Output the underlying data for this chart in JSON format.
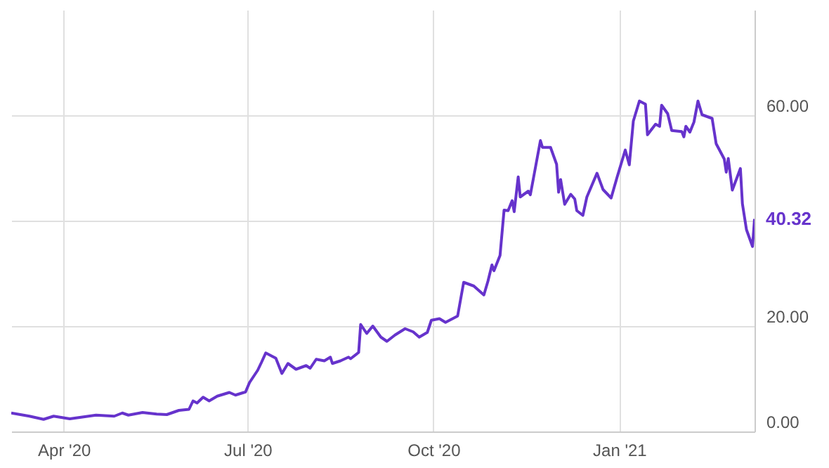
{
  "chart_data": {
    "type": "line",
    "x": [
      "2020-03-06",
      "2020-03-15",
      "2020-03-22",
      "2020-03-27",
      "2020-04-04",
      "2020-04-17",
      "2020-04-26",
      "2020-04-30",
      "2020-05-03",
      "2020-05-10",
      "2020-05-17",
      "2020-05-22",
      "2020-05-28",
      "2020-06-02",
      "2020-06-04",
      "2020-06-06",
      "2020-06-09",
      "2020-06-12",
      "2020-06-16",
      "2020-06-22",
      "2020-06-25",
      "2020-06-30",
      "2020-07-02",
      "2020-07-06",
      "2020-07-08",
      "2020-07-10",
      "2020-07-15",
      "2020-07-18",
      "2020-07-21",
      "2020-07-25",
      "2020-07-30",
      "2020-08-01",
      "2020-08-04",
      "2020-08-08",
      "2020-08-11",
      "2020-08-12",
      "2020-08-16",
      "2020-08-20",
      "2020-08-21",
      "2020-08-25",
      "2020-08-26",
      "2020-08-29",
      "2020-09-01",
      "2020-09-05",
      "2020-09-08",
      "2020-09-12",
      "2020-09-17",
      "2020-09-21",
      "2020-09-24",
      "2020-09-28",
      "2020-09-30",
      "2020-10-04",
      "2020-10-07",
      "2020-10-13",
      "2020-10-16",
      "2020-10-21",
      "2020-10-26",
      "2020-10-28",
      "2020-10-30",
      "2020-10-31",
      "2020-11-03",
      "2020-11-05",
      "2020-11-07",
      "2020-11-09",
      "2020-11-10",
      "2020-11-12",
      "2020-11-13",
      "2020-11-17",
      "2020-11-18",
      "2020-11-20",
      "2020-11-23",
      "2020-11-24",
      "2020-11-28",
      "2020-12-01",
      "2020-12-02",
      "2020-12-03",
      "2020-12-05",
      "2020-12-08",
      "2020-12-10",
      "2020-12-11",
      "2020-12-14",
      "2020-12-16",
      "2020-12-21",
      "2020-12-24",
      "2020-12-28",
      "2020-12-31",
      "2021-01-04",
      "2021-01-06",
      "2021-01-08",
      "2021-01-11",
      "2021-01-14",
      "2021-01-15",
      "2021-01-19",
      "2021-01-21",
      "2021-01-22",
      "2021-01-25",
      "2021-01-27",
      "2021-02-01",
      "2021-02-02",
      "2021-02-03",
      "2021-02-05",
      "2021-02-07",
      "2021-02-09",
      "2021-02-11",
      "2021-02-16",
      "2021-02-18",
      "2021-02-22",
      "2021-02-23",
      "2021-02-24",
      "2021-02-26",
      "2021-03-02",
      "2021-03-03",
      "2021-03-05",
      "2021-03-08",
      "2021-03-09"
    ],
    "series": [
      {
        "color": "#6633cc",
        "values": [
          3.5,
          2.9,
          2.3,
          2.9,
          2.4,
          3.1,
          2.9,
          3.5,
          3.1,
          3.6,
          3.3,
          3.2,
          4.0,
          4.2,
          5.8,
          5.4,
          6.5,
          5.8,
          6.7,
          7.4,
          6.9,
          7.5,
          9.3,
          11.6,
          13.2,
          14.9,
          13.9,
          11.0,
          12.9,
          11.8,
          12.5,
          12.0,
          13.7,
          13.4,
          14.1,
          12.9,
          13.4,
          14.1,
          13.8,
          15.0,
          20.3,
          18.6,
          20.0,
          17.9,
          17.1,
          18.3,
          19.5,
          18.9,
          17.9,
          18.8,
          21.1,
          21.4,
          20.7,
          21.9,
          28.3,
          27.6,
          25.9,
          28.5,
          31.6,
          30.5,
          33.4,
          42.0,
          41.9,
          43.8,
          41.7,
          48.3,
          44.5,
          45.6,
          44.9,
          49.0,
          55.2,
          53.9,
          53.9,
          50.7,
          45.4,
          47.8,
          43.1,
          45.0,
          44.1,
          41.9,
          41.0,
          44.5,
          49.0,
          45.9,
          44.3,
          48.3,
          53.4,
          50.6,
          58.9,
          62.7,
          62.1,
          56.3,
          58.3,
          57.9,
          61.9,
          60.3,
          57.1,
          56.9,
          55.9,
          57.9,
          56.8,
          58.7,
          62.7,
          60.1,
          59.4,
          54.6,
          51.7,
          49.2,
          51.8,
          45.8,
          49.9,
          43.2,
          38.3,
          35.1,
          40.32
        ]
      }
    ],
    "xlim": [
      "2020-03-06",
      "2021-03-09"
    ],
    "xticks": [
      {
        "value": "2020-04-01",
        "label": "Apr '20"
      },
      {
        "value": "2020-07-01",
        "label": "Jul '20"
      },
      {
        "value": "2020-10-01",
        "label": "Oct '20"
      },
      {
        "value": "2021-01-01",
        "label": "Jan '21"
      }
    ],
    "ylim": [
      0,
      80
    ],
    "yticks": [
      {
        "value": 0,
        "label": "0.00"
      },
      {
        "value": 20,
        "label": "20.00"
      },
      {
        "value": 40,
        "label": null
      },
      {
        "value": 60,
        "label": "60.00"
      }
    ],
    "grid": true,
    "annotations": [
      {
        "text": "40.32",
        "x": "2021-03-09",
        "y": 40.32
      }
    ]
  }
}
